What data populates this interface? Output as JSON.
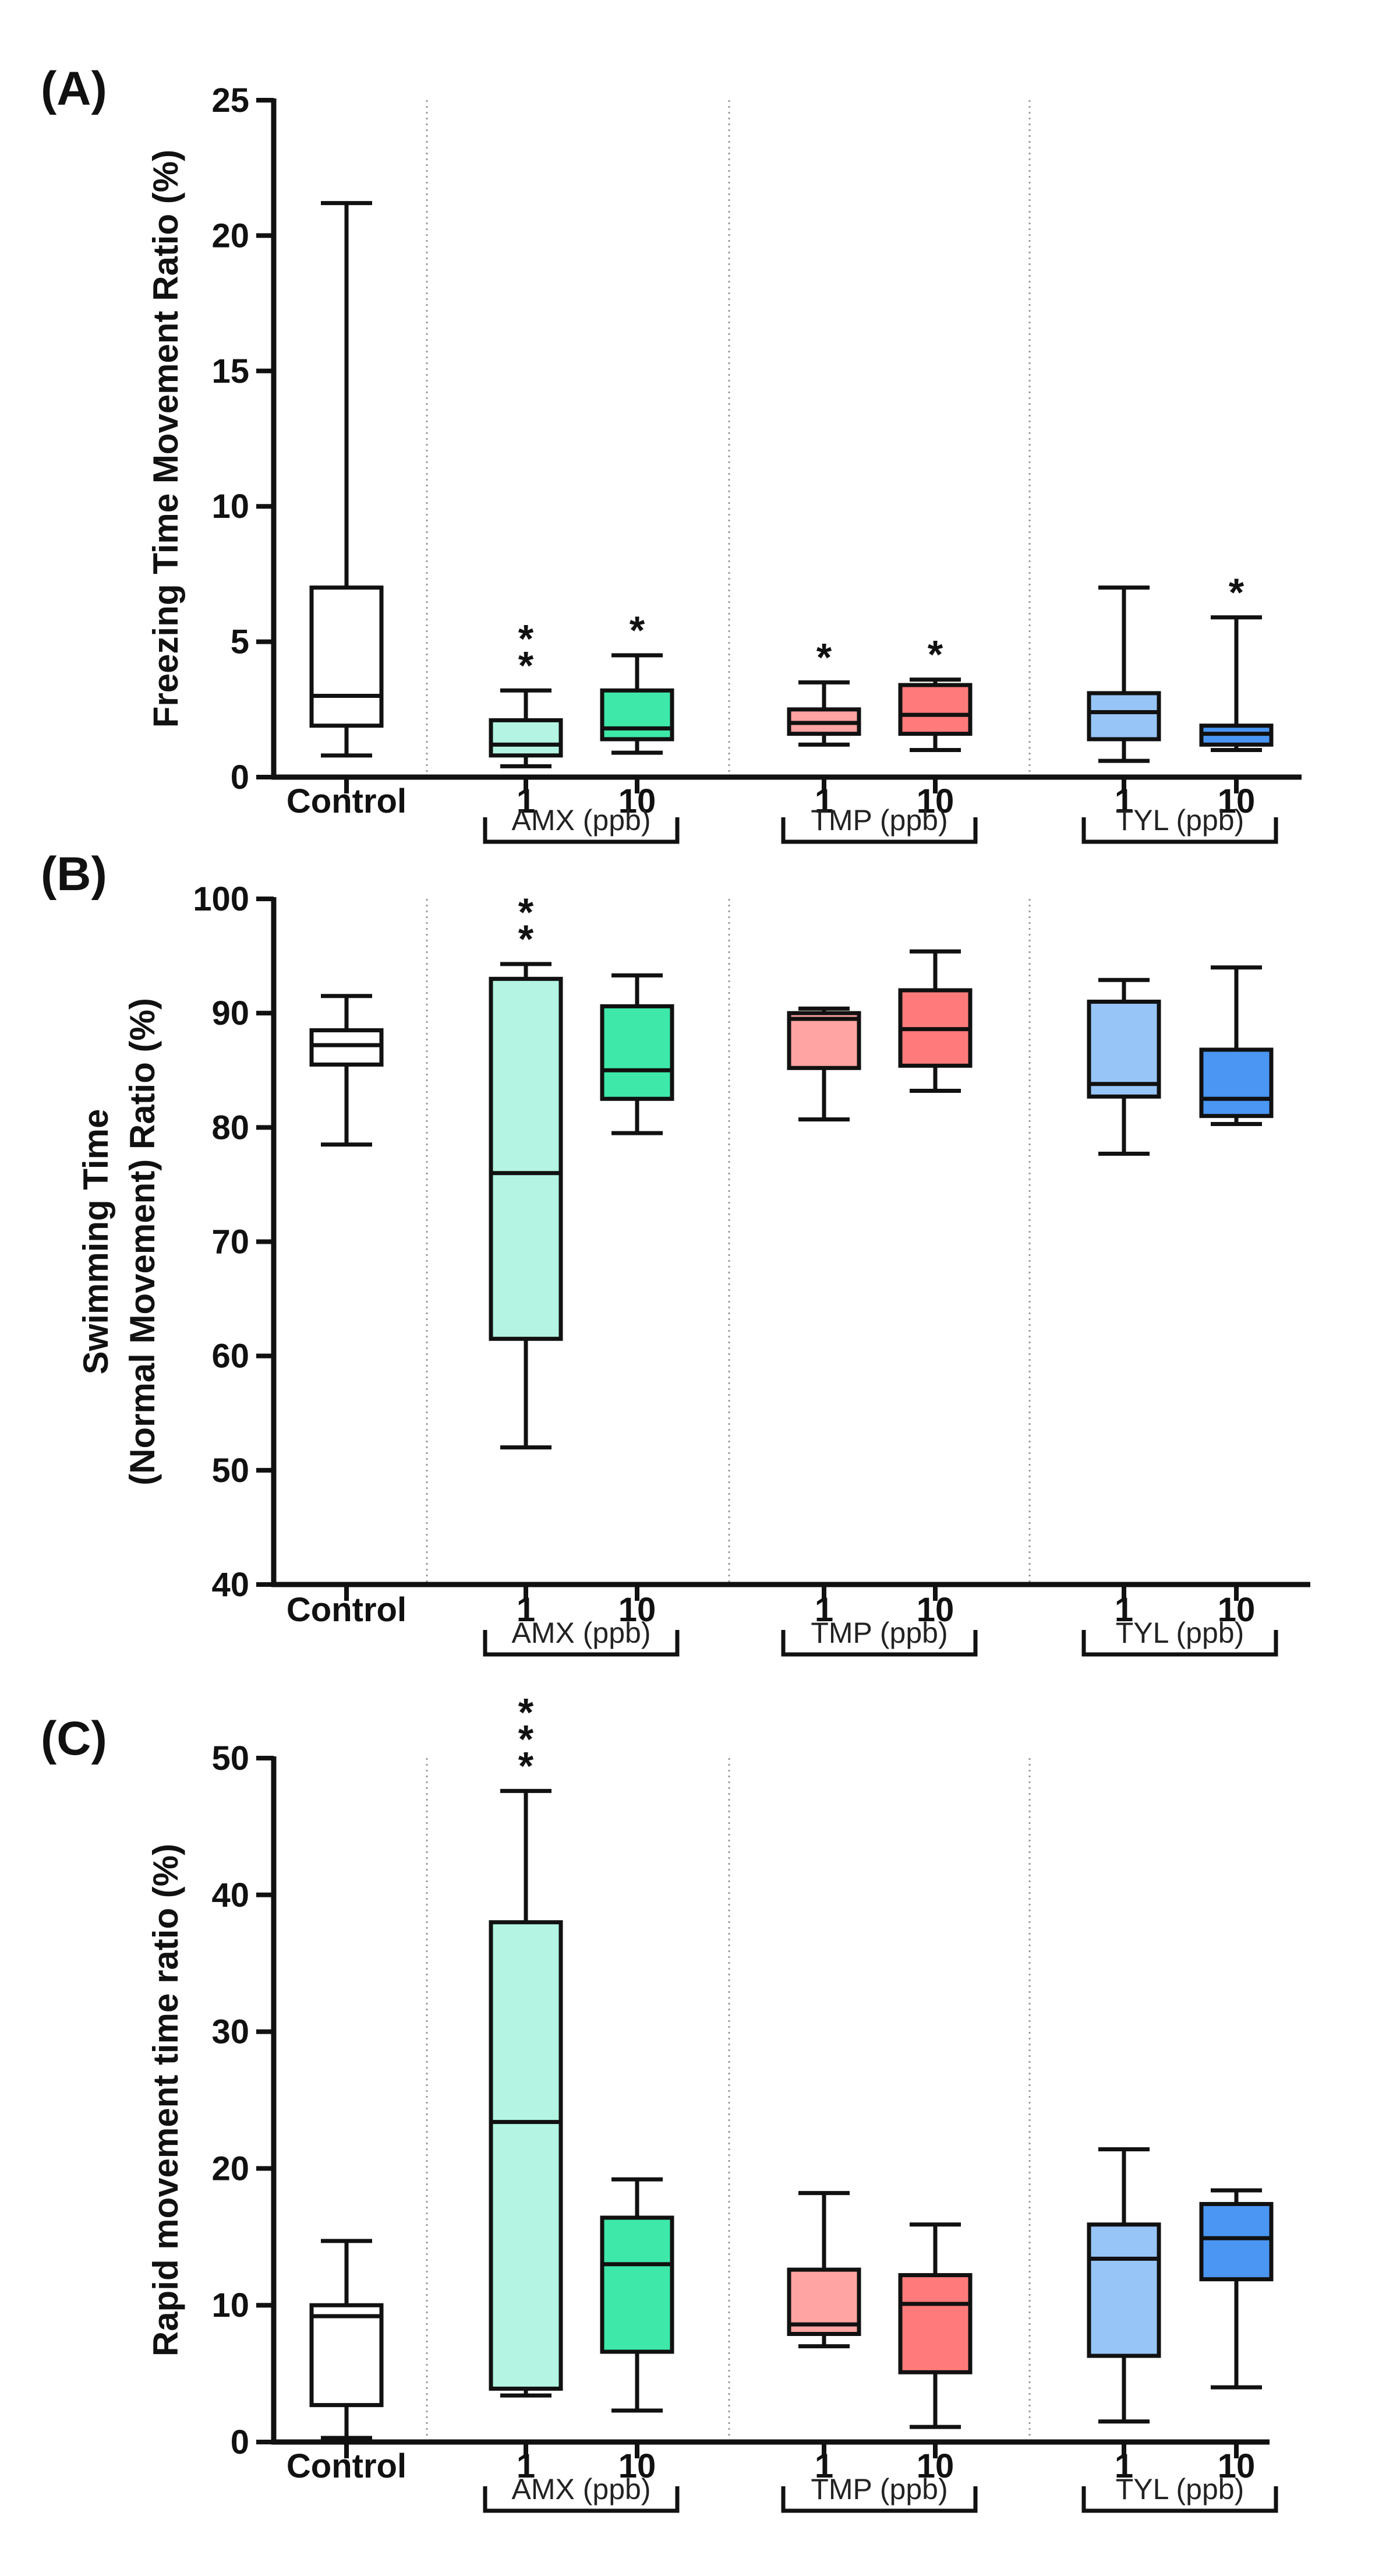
{
  "colors": {
    "Control": "#ffffff",
    "AMX 1": "#b3f5e2",
    "AMX 10": "#3ee8a8",
    "TMP 1": "#ffa3a3",
    "TMP 10": "#ff7b7b",
    "TYL 1": "#98c5f8",
    "TYL 10": "#4a96f2",
    "axis": "#111111",
    "separator": "#9a9a9a"
  },
  "chart_data": [
    {
      "type": "box",
      "panel_label": "(A)",
      "ylabel": "Freezing Time Movement Ratio (%)",
      "ylim": [
        0,
        25
      ],
      "yticks": [
        0,
        5,
        10,
        15,
        20,
        25
      ],
      "categories": [
        "Control",
        "1",
        "10",
        "1",
        "10",
        "1",
        "10"
      ],
      "groups": [
        {
          "label": "AMX (ppb)",
          "members": [
            1,
            2
          ]
        },
        {
          "label": "TMP (ppb)",
          "members": [
            3,
            4
          ]
        },
        {
          "label": "TYL (ppb)",
          "members": [
            5,
            6
          ]
        }
      ],
      "series": [
        {
          "name": "Control",
          "min": 0.8,
          "q1": 1.9,
          "median": 3.0,
          "q3": 7.0,
          "max": 21.2,
          "sig": ""
        },
        {
          "name": "AMX 1",
          "min": 0.4,
          "q1": 0.8,
          "median": 1.2,
          "q3": 2.1,
          "max": 3.2,
          "sig": "**"
        },
        {
          "name": "AMX 10",
          "min": 0.9,
          "q1": 1.4,
          "median": 1.8,
          "q3": 3.2,
          "max": 4.5,
          "sig": "*"
        },
        {
          "name": "TMP 1",
          "min": 1.2,
          "q1": 1.6,
          "median": 2.0,
          "q3": 2.5,
          "max": 3.5,
          "sig": "*"
        },
        {
          "name": "TMP 10",
          "min": 1.0,
          "q1": 1.6,
          "median": 2.3,
          "q3": 3.4,
          "max": 3.6,
          "sig": "*"
        },
        {
          "name": "TYL 1",
          "min": 0.6,
          "q1": 1.4,
          "median": 2.4,
          "q3": 3.1,
          "max": 7.0,
          "sig": ""
        },
        {
          "name": "TYL 10",
          "min": 1.0,
          "q1": 1.2,
          "median": 1.6,
          "q3": 1.9,
          "max": 5.9,
          "sig": "*"
        }
      ]
    },
    {
      "type": "box",
      "panel_label": "(B)",
      "ylabel": "Swimming Time",
      "ylabel2": "(Normal Movement)  Ratio (%)",
      "ylim": [
        40,
        100
      ],
      "yticks": [
        40,
        50,
        60,
        70,
        80,
        90,
        100
      ],
      "categories": [
        "Control",
        "1",
        "10",
        "1",
        "10",
        "1",
        "10"
      ],
      "groups": [
        {
          "label": "AMX (ppb)",
          "members": [
            1,
            2
          ]
        },
        {
          "label": "TMP (ppb)",
          "members": [
            3,
            4
          ]
        },
        {
          "label": "TYL (ppb)",
          "members": [
            5,
            6
          ]
        }
      ],
      "series": [
        {
          "name": "Control",
          "min": 78.5,
          "q1": 85.5,
          "median": 87.2,
          "q3": 88.5,
          "max": 91.5,
          "sig": ""
        },
        {
          "name": "AMX 1",
          "min": 52.0,
          "q1": 61.5,
          "median": 76.0,
          "q3": 93.0,
          "max": 94.3,
          "sig": "**"
        },
        {
          "name": "AMX 10",
          "min": 79.5,
          "q1": 82.5,
          "median": 85.0,
          "q3": 90.6,
          "max": 93.3,
          "sig": ""
        },
        {
          "name": "TMP 1",
          "min": 80.7,
          "q1": 85.2,
          "median": 89.5,
          "q3": 90.0,
          "max": 90.4,
          "sig": ""
        },
        {
          "name": "TMP 10",
          "min": 83.2,
          "q1": 85.4,
          "median": 88.6,
          "q3": 92.0,
          "max": 95.4,
          "sig": ""
        },
        {
          "name": "TYL 1",
          "min": 77.7,
          "q1": 82.7,
          "median": 83.8,
          "q3": 91.0,
          "max": 92.9,
          "sig": ""
        },
        {
          "name": "TYL 10",
          "min": 80.3,
          "q1": 81.0,
          "median": 82.5,
          "q3": 86.8,
          "max": 94.0,
          "sig": ""
        }
      ]
    },
    {
      "type": "box",
      "panel_label": "(C)",
      "ylabel": "Rapid movement time ratio (%)",
      "ylim": [
        0,
        50
      ],
      "yticks": [
        0,
        10,
        20,
        30,
        40,
        50
      ],
      "categories": [
        "Control",
        "1",
        "10",
        "1",
        "10",
        "1",
        "10"
      ],
      "groups": [
        {
          "label": "AMX (ppb)",
          "members": [
            1,
            2
          ]
        },
        {
          "label": "TMP (ppb)",
          "members": [
            3,
            4
          ]
        },
        {
          "label": "TYL (ppb)",
          "members": [
            5,
            6
          ]
        }
      ],
      "series": [
        {
          "name": "Control",
          "min": 0.3,
          "q1": 2.7,
          "median": 9.2,
          "q3": 10.0,
          "max": 14.7,
          "sig": ""
        },
        {
          "name": "AMX 1",
          "min": 3.4,
          "q1": 3.9,
          "median": 23.4,
          "q3": 38.0,
          "max": 47.6,
          "sig": "***"
        },
        {
          "name": "AMX 10",
          "min": 2.3,
          "q1": 6.6,
          "median": 13.0,
          "q3": 16.4,
          "max": 19.2,
          "sig": ""
        },
        {
          "name": "TMP 1",
          "min": 7.0,
          "q1": 7.9,
          "median": 8.6,
          "q3": 12.6,
          "max": 18.2,
          "sig": ""
        },
        {
          "name": "TMP 10",
          "min": 1.1,
          "q1": 5.1,
          "median": 10.1,
          "q3": 12.2,
          "max": 15.9,
          "sig": ""
        },
        {
          "name": "TYL 1",
          "min": 1.5,
          "q1": 6.3,
          "median": 13.4,
          "q3": 15.9,
          "max": 21.4,
          "sig": ""
        },
        {
          "name": "TYL 10",
          "min": 4.0,
          "q1": 11.9,
          "median": 14.9,
          "q3": 17.4,
          "max": 18.4,
          "sig": ""
        }
      ]
    }
  ]
}
